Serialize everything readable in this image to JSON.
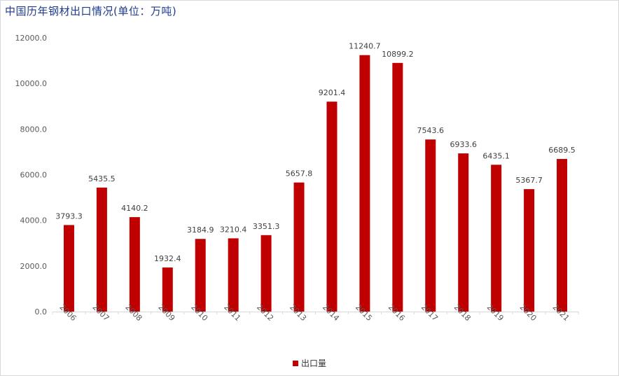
{
  "title": "中国历年钢材出口情况(单位：万吨)",
  "chart_data": {
    "type": "bar",
    "title": "中国历年钢材出口情况(单位：万吨)",
    "categories": [
      "2006",
      "2007",
      "2008",
      "2009",
      "2010",
      "2011",
      "2012",
      "2013",
      "2014",
      "2015",
      "2016",
      "2017",
      "2018",
      "2019",
      "2020",
      "2021"
    ],
    "series": [
      {
        "name": "出口量",
        "color": "#c00000",
        "values": [
          3793.3,
          5435.5,
          4140.2,
          1932.4,
          3184.9,
          3210.4,
          3351.3,
          5657.8,
          9201.4,
          11240.7,
          10899.2,
          7543.6,
          6933.6,
          6435.1,
          5367.7,
          6689.5
        ],
        "labels": [
          "3793.3",
          "5435.5",
          "4140.2",
          "1932.4",
          "3184.9",
          "3210.4",
          "3351.3",
          "5657.8",
          "9201.4",
          "11240.7",
          "10899.2",
          "7543.6",
          "6933.6",
          "6435.1",
          "5367.7",
          "6689.5"
        ]
      }
    ],
    "ylim": [
      0,
      12000
    ],
    "yticks": [
      "0.0",
      "2000.0",
      "4000.0",
      "6000.0",
      "8000.0",
      "10000.0",
      "12000.0"
    ],
    "ytick_values": [
      0,
      2000,
      4000,
      6000,
      8000,
      10000,
      12000
    ],
    "grid": false,
    "legend": "bottom"
  }
}
